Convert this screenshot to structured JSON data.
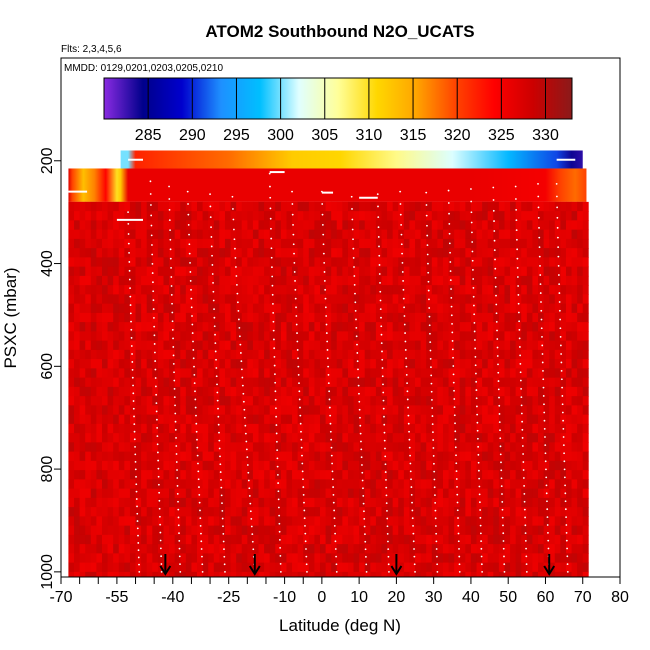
{
  "chart_data": {
    "type": "heatmap",
    "title": "ATOM2 Southbound N2O_UCATS",
    "flights_note": "Flts: 2,3,4,5,6",
    "dates_note": "MMDD: 0129,0201,0203,0205,0210",
    "xlabel": "Latitude (deg N)",
    "ylabel": "PSXC (mbar)",
    "xlim": [
      -70,
      80
    ],
    "ylim": [
      1010,
      0
    ],
    "x_ticks": [
      -70,
      -55,
      -40,
      -25,
      -10,
      0,
      10,
      20,
      30,
      40,
      50,
      60,
      70,
      80
    ],
    "x_tick_labels": [
      "-70",
      "-55",
      "-40",
      "-25",
      "-10",
      "0",
      "10",
      "20",
      "30",
      "40",
      "50",
      "60",
      "70",
      "80"
    ],
    "x_minor_ticks": [
      -65,
      -60,
      -50,
      -45,
      -35,
      -30,
      -20,
      -15,
      -5
    ],
    "y_ticks": [
      200,
      400,
      600,
      800,
      1000
    ],
    "y_tick_labels": [
      "200",
      "400",
      "600",
      "800",
      "1000"
    ],
    "colorbar": {
      "min": 280,
      "max": 333,
      "ticks": [
        285,
        290,
        295,
        300,
        305,
        310,
        315,
        320,
        325,
        330
      ],
      "tick_labels": [
        "285",
        "290",
        "295",
        "300",
        "305",
        "310",
        "315",
        "320",
        "325",
        "330"
      ],
      "colors": [
        "#8a2be2",
        "#00008b",
        "#0000cd",
        "#1e90ff",
        "#00bfff",
        "#e0ffff",
        "#ffff99",
        "#ffd700",
        "#ffa500",
        "#ff4500",
        "#ff0000",
        "#cc0000",
        "#8b1a1a"
      ]
    },
    "layers": [
      {
        "name": "",
        "p_top": 180,
        "p_bottom": 215,
        "gradient": [
          {
            "lat": -54,
            "value": 300
          },
          {
            "lat": -52,
            "value": 300
          },
          {
            "lat": -50,
            "value": 322
          },
          {
            "lat": -25,
            "value": 318
          },
          {
            "lat": -8,
            "value": 312
          },
          {
            "lat": 5,
            "value": 311
          },
          {
            "lat": 20,
            "value": 307
          },
          {
            "lat": 35,
            "value": 302
          },
          {
            "lat": 50,
            "value": 297
          },
          {
            "lat": 63,
            "value": 291
          },
          {
            "lat": 67,
            "value": 284
          },
          {
            "lat": 70,
            "value": 283
          }
        ]
      },
      {
        "name": "",
        "p_top": 215,
        "p_bottom": 280,
        "gradient": [
          {
            "lat": -68,
            "value": 327
          },
          {
            "lat": -67,
            "value": 320
          },
          {
            "lat": -64,
            "value": 313
          },
          {
            "lat": -61,
            "value": 317
          },
          {
            "lat": -58,
            "value": 324
          },
          {
            "lat": -55,
            "value": 310
          },
          {
            "lat": -54,
            "value": 312
          },
          {
            "lat": -52,
            "value": 326
          },
          {
            "lat": 40,
            "value": 326
          },
          {
            "lat": 60,
            "value": 325
          },
          {
            "lat": 64,
            "value": 320
          },
          {
            "lat": 68,
            "value": 318
          },
          {
            "lat": 71,
            "value": 320
          }
        ]
      },
      {
        "name": "",
        "p_top": 280,
        "p_bottom": 1010,
        "background_value": 327
      }
    ],
    "profiles": [
      {
        "lat_start": -52,
        "lat_end": -49,
        "p_top": 300,
        "p_bottom": 1000
      },
      {
        "lat_start": -46,
        "lat_end": -43,
        "p_top": 240,
        "p_bottom": 1000
      },
      {
        "lat_start": -41,
        "lat_end": -38,
        "p_top": 250,
        "p_bottom": 1000
      },
      {
        "lat_start": -36,
        "lat_end": -32,
        "p_top": 260,
        "p_bottom": 1000
      },
      {
        "lat_start": -30,
        "lat_end": -26,
        "p_top": 265,
        "p_bottom": 1000
      },
      {
        "lat_start": -24,
        "lat_end": -18,
        "p_top": 270,
        "p_bottom": 1000
      },
      {
        "lat_start": -14,
        "lat_end": -11,
        "p_top": 225,
        "p_bottom": 1000
      },
      {
        "lat_start": -8,
        "lat_end": -4,
        "p_top": 260,
        "p_bottom": 1000
      },
      {
        "lat_start": 0,
        "lat_end": 4,
        "p_top": 260,
        "p_bottom": 1000
      },
      {
        "lat_start": 8,
        "lat_end": 12,
        "p_top": 270,
        "p_bottom": 1000
      },
      {
        "lat_start": 15,
        "lat_end": 18,
        "p_top": 265,
        "p_bottom": 1000
      },
      {
        "lat_start": 21,
        "lat_end": 25,
        "p_top": 260,
        "p_bottom": 1000
      },
      {
        "lat_start": 28,
        "lat_end": 31,
        "p_top": 262,
        "p_bottom": 1000
      },
      {
        "lat_start": 34,
        "lat_end": 37,
        "p_top": 258,
        "p_bottom": 1000
      },
      {
        "lat_start": 40,
        "lat_end": 43,
        "p_top": 255,
        "p_bottom": 1000
      },
      {
        "lat_start": 46,
        "lat_end": 49,
        "p_top": 252,
        "p_bottom": 1000
      },
      {
        "lat_start": 52,
        "lat_end": 55,
        "p_top": 250,
        "p_bottom": 1000
      },
      {
        "lat_start": 58,
        "lat_end": 61,
        "p_top": 245,
        "p_bottom": 1000
      },
      {
        "lat_start": 63,
        "lat_end": 66,
        "p_top": 245,
        "p_bottom": 1000
      }
    ],
    "level_segments": [
      {
        "lat_start": -52,
        "lat_end": -48,
        "p": 198
      },
      {
        "lat_start": -68,
        "lat_end": -63,
        "p": 260
      },
      {
        "lat_start": -55,
        "lat_end": -48,
        "p": 315
      },
      {
        "lat_start": -14,
        "lat_end": -10,
        "p": 222
      },
      {
        "lat_start": 10,
        "lat_end": 15,
        "p": 272
      },
      {
        "lat_start": 0,
        "lat_end": 3,
        "p": 262
      },
      {
        "lat_start": 63,
        "lat_end": 68,
        "p": 198
      }
    ],
    "flight_markers": [
      {
        "lat": -42
      },
      {
        "lat": -18
      },
      {
        "lat": 20
      },
      {
        "lat": 61
      }
    ]
  }
}
